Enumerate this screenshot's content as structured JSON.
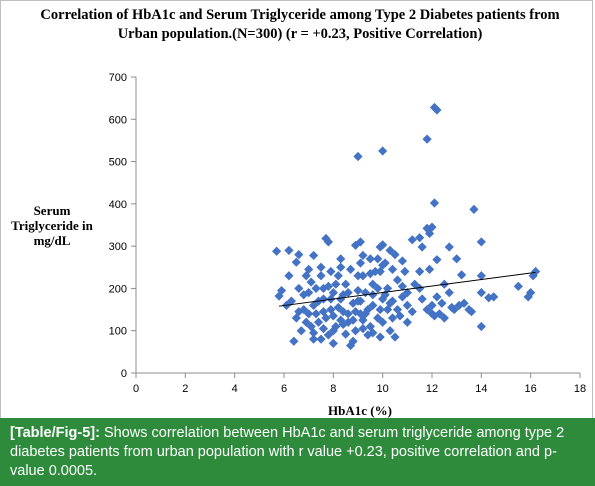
{
  "chart_data": {
    "type": "scatter",
    "title": "Correlation of HbA1c and Serum Triglyceride among Type 2 Diabetes patients from Urban population.(N=300) (r = +0.23, Positive Correlation)",
    "xlabel": "HbA1c (%)",
    "ylabel": "Serum Triglyceride in mg/dL",
    "xlim": [
      0,
      18
    ],
    "ylim": [
      0,
      700
    ],
    "xticks": [
      0,
      2,
      4,
      6,
      8,
      10,
      12,
      14,
      16,
      18
    ],
    "yticks": [
      0,
      100,
      200,
      300,
      400,
      500,
      600,
      700
    ],
    "grid": false,
    "legend": false,
    "marker_color": "#4472c4",
    "trendline": {
      "x": [
        5.8,
        16.2
      ],
      "y": [
        158,
        238
      ]
    },
    "points": [
      [
        12.1,
        628
      ],
      [
        12.2,
        622
      ],
      [
        9.0,
        512
      ],
      [
        10.0,
        525
      ],
      [
        11.8,
        553
      ],
      [
        12.1,
        402
      ],
      [
        13.7,
        387
      ],
      [
        12.0,
        345
      ],
      [
        11.8,
        342
      ],
      [
        14.0,
        310
      ],
      [
        11.5,
        320
      ],
      [
        11.2,
        315
      ],
      [
        11.6,
        298
      ],
      [
        11.9,
        330
      ],
      [
        12.7,
        298
      ],
      [
        10.0,
        303
      ],
      [
        9.9,
        298
      ],
      [
        10.3,
        290
      ],
      [
        7.7,
        318
      ],
      [
        7.8,
        310
      ],
      [
        9.1,
        310
      ],
      [
        8.9,
        302
      ],
      [
        5.7,
        288
      ],
      [
        6.2,
        290
      ],
      [
        6.6,
        280
      ],
      [
        7.2,
        278
      ],
      [
        8.3,
        270
      ],
      [
        9.2,
        278
      ],
      [
        9.8,
        270
      ],
      [
        10.5,
        280
      ],
      [
        10.8,
        265
      ],
      [
        12.2,
        268
      ],
      [
        13.2,
        232
      ],
      [
        14.0,
        230
      ],
      [
        11.9,
        245
      ],
      [
        15.5,
        205
      ],
      [
        16.0,
        190
      ],
      [
        15.9,
        180
      ],
      [
        16.2,
        240
      ],
      [
        16.1,
        230
      ],
      [
        14.5,
        180
      ],
      [
        14.3,
        178
      ],
      [
        14.0,
        190
      ],
      [
        14.0,
        110
      ],
      [
        13.5,
        150
      ],
      [
        13.3,
        165
      ],
      [
        13.1,
        160
      ],
      [
        12.9,
        150
      ],
      [
        12.7,
        190
      ],
      [
        12.5,
        210
      ],
      [
        12.3,
        140
      ],
      [
        12.1,
        135
      ],
      [
        12.0,
        160
      ],
      [
        11.8,
        150
      ],
      [
        11.5,
        200
      ],
      [
        11.3,
        210
      ],
      [
        11.0,
        190
      ],
      [
        10.9,
        240
      ],
      [
        10.8,
        180
      ],
      [
        10.6,
        220
      ],
      [
        10.4,
        130
      ],
      [
        10.3,
        100
      ],
      [
        10.2,
        150
      ],
      [
        10.1,
        260
      ],
      [
        10.0,
        120
      ],
      [
        9.9,
        85
      ],
      [
        9.8,
        200
      ],
      [
        9.7,
        240
      ],
      [
        9.6,
        160
      ],
      [
        9.5,
        110
      ],
      [
        9.4,
        90
      ],
      [
        9.3,
        190
      ],
      [
        9.2,
        230
      ],
      [
        9.1,
        140
      ],
      [
        9.0,
        170
      ],
      [
        8.9,
        100
      ],
      [
        8.8,
        75
      ],
      [
        8.7,
        65
      ],
      [
        8.6,
        120
      ],
      [
        8.5,
        210
      ],
      [
        8.4,
        145
      ],
      [
        8.3,
        175
      ],
      [
        8.2,
        230
      ],
      [
        8.1,
        110
      ],
      [
        8.0,
        190
      ],
      [
        7.9,
        150
      ],
      [
        7.8,
        90
      ],
      [
        7.7,
        130
      ],
      [
        7.6,
        200
      ],
      [
        7.5,
        250
      ],
      [
        7.4,
        170
      ],
      [
        7.3,
        140
      ],
      [
        7.2,
        80
      ],
      [
        7.1,
        110
      ],
      [
        7.0,
        190
      ],
      [
        6.9,
        230
      ],
      [
        6.8,
        150
      ],
      [
        6.7,
        100
      ],
      [
        6.6,
        200
      ],
      [
        6.5,
        130
      ],
      [
        6.4,
        75
      ],
      [
        6.3,
        170
      ],
      [
        6.2,
        230
      ],
      [
        6.1,
        160
      ],
      [
        5.9,
        195
      ],
      [
        5.8,
        182
      ],
      [
        6.5,
        262
      ],
      [
        7.0,
        245
      ],
      [
        7.5,
        80
      ],
      [
        8.0,
        70
      ],
      [
        8.5,
        92
      ],
      [
        9.0,
        230
      ],
      [
        9.5,
        270
      ],
      [
        10.0,
        255
      ],
      [
        10.5,
        85
      ],
      [
        11.0,
        120
      ],
      [
        11.5,
        240
      ],
      [
        12.0,
        140
      ],
      [
        12.5,
        130
      ],
      [
        13.0,
        270
      ],
      [
        7.2,
        160
      ],
      [
        7.4,
        120
      ],
      [
        7.6,
        175
      ],
      [
        7.8,
        205
      ],
      [
        8.0,
        135
      ],
      [
        8.2,
        155
      ],
      [
        8.4,
        185
      ],
      [
        8.6,
        140
      ],
      [
        8.8,
        165
      ],
      [
        9.0,
        195
      ],
      [
        9.2,
        125
      ],
      [
        9.4,
        150
      ],
      [
        9.6,
        185
      ],
      [
        9.8,
        130
      ],
      [
        10.0,
        175
      ],
      [
        10.2,
        200
      ],
      [
        10.4,
        170
      ],
      [
        10.6,
        150
      ],
      [
        10.8,
        205
      ],
      [
        11.0,
        160
      ],
      [
        6.8,
        185
      ],
      [
        7.0,
        140
      ],
      [
        7.3,
        200
      ],
      [
        7.6,
        145
      ],
      [
        7.9,
        175
      ],
      [
        8.1,
        210
      ],
      [
        8.3,
        125
      ],
      [
        8.6,
        190
      ],
      [
        8.9,
        145
      ],
      [
        9.1,
        170
      ],
      [
        9.3,
        140
      ],
      [
        9.6,
        210
      ],
      [
        9.9,
        150
      ],
      [
        10.1,
        185
      ],
      [
        10.3,
        165
      ],
      [
        7.1,
        215
      ],
      [
        7.5,
        230
      ],
      [
        7.9,
        240
      ],
      [
        8.3,
        250
      ],
      [
        8.7,
        245
      ],
      [
        9.1,
        260
      ],
      [
        9.5,
        235
      ],
      [
        9.9,
        240
      ],
      [
        10.4,
        245
      ],
      [
        8.0,
        100
      ],
      [
        8.4,
        115
      ],
      [
        8.8,
        125
      ],
      [
        9.2,
        105
      ],
      [
        9.6,
        95
      ],
      [
        7.6,
        105
      ],
      [
        7.2,
        95
      ],
      [
        6.9,
        120
      ],
      [
        6.6,
        145
      ],
      [
        10.7,
        135
      ],
      [
        11.2,
        145
      ],
      [
        11.6,
        175
      ],
      [
        12.2,
        180
      ],
      [
        12.4,
        165
      ],
      [
        13.6,
        145
      ],
      [
        12.8,
        155
      ]
    ]
  },
  "caption": {
    "tag": "[Table/Fig-5]:",
    "text": "Shows correlation between HbA1c and serum triglyceride among type 2 diabetes patients from urban population with r value +0.23, positive correlation and p-value 0.0005."
  }
}
